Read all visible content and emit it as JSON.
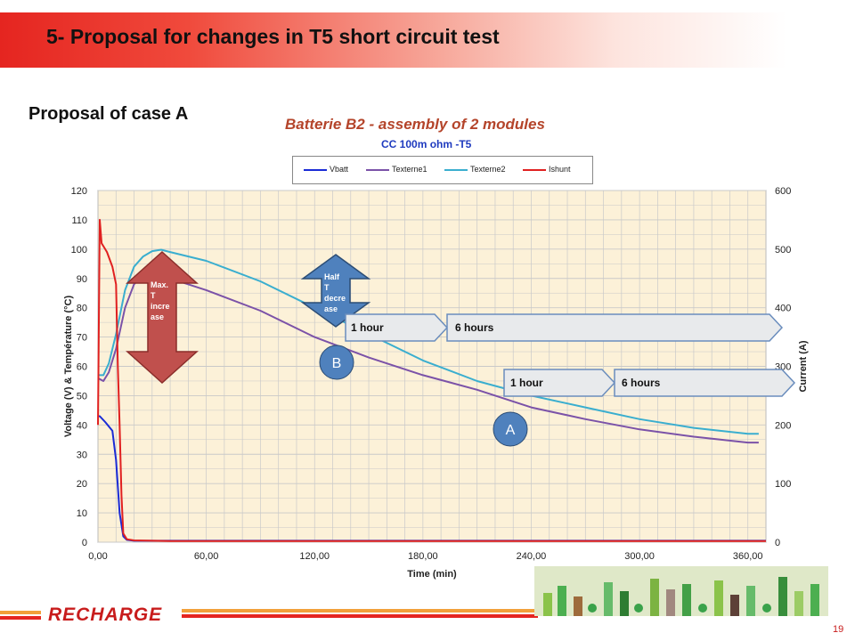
{
  "slide": {
    "title": "5- Proposal for changes in T5 short circuit test",
    "subtitle": "Proposal of case A",
    "page_number": "19",
    "logo_text": "RECHARGE"
  },
  "colors": {
    "accent": "#e52520",
    "title_chart": "#b4442a",
    "plot_bg": "#fcf1d8",
    "grid": "#c9c9c9"
  },
  "chart_data": {
    "type": "line",
    "title": "Batterie B2 - assembly of 2 modules",
    "subtitle": "CC 100m ohm -T5",
    "xlabel": "Time (min)",
    "ylabel": "Voltage (V) & Température (°C)",
    "y2label": "Current (A)",
    "xlim": [
      0,
      370
    ],
    "ylim": [
      0,
      120
    ],
    "y2lim": [
      0,
      600
    ],
    "x_tick_labels": [
      "0,00",
      "60,00",
      "120,00",
      "180,00",
      "240,00",
      "300,00",
      "360,00"
    ],
    "x_ticks": [
      0,
      60,
      120,
      180,
      240,
      300,
      360
    ],
    "y_ticks": [
      0,
      10,
      20,
      30,
      40,
      50,
      60,
      70,
      80,
      90,
      100,
      110,
      120
    ],
    "y2_ticks": [
      0,
      100,
      200,
      300,
      400,
      500,
      600
    ],
    "grid": true,
    "legend_position": "top",
    "series": [
      {
        "name": "Vbatt",
        "axis": "left",
        "color": "#1a2bd6",
        "x": [
          0,
          1,
          4,
          8,
          10,
          12,
          14,
          16,
          20,
          370
        ],
        "y": [
          43,
          43,
          41,
          38,
          28,
          10,
          2,
          0.8,
          0.5,
          0.5
        ]
      },
      {
        "name": "Texterne1",
        "axis": "left",
        "color": "#7b52a8",
        "x": [
          0,
          3,
          6,
          10,
          15,
          20,
          25,
          30,
          40,
          60,
          90,
          120,
          150,
          180,
          210,
          240,
          270,
          300,
          330,
          360,
          366
        ],
        "y": [
          56,
          55,
          58,
          66,
          80,
          88,
          91,
          91.5,
          90,
          86,
          79,
          70,
          63,
          57,
          52,
          46,
          42,
          38.5,
          36,
          34,
          34
        ]
      },
      {
        "name": "Texterne2",
        "axis": "left",
        "color": "#3aaecf",
        "x": [
          0,
          3,
          6,
          10,
          15,
          20,
          25,
          30,
          35,
          40,
          60,
          90,
          120,
          150,
          180,
          210,
          240,
          270,
          300,
          330,
          360,
          366
        ],
        "y": [
          57,
          57,
          61,
          71,
          86,
          94,
          97.5,
          99.3,
          99.8,
          99,
          96,
          89,
          80,
          71,
          62,
          55,
          50,
          46,
          42,
          39,
          37,
          37
        ]
      },
      {
        "name": "Ishunt",
        "axis": "right",
        "color": "#e02020",
        "x": [
          0,
          1,
          2,
          3,
          5,
          8,
          10,
          11,
          12,
          13,
          14,
          16,
          20,
          40,
          370
        ],
        "y": [
          200,
          550,
          510,
          505,
          495,
          470,
          440,
          300,
          200,
          80,
          15,
          5,
          3,
          2,
          2
        ]
      }
    ],
    "annotations": {
      "max_t_increase": "Max. T incre ase",
      "half_t_decrease": "Half T decre ase",
      "b_label": "B",
      "a_label": "A",
      "b_hour": "1 hour",
      "b_six": "6 hours",
      "a_hour": "1 hour",
      "a_six": "6 hours"
    }
  }
}
